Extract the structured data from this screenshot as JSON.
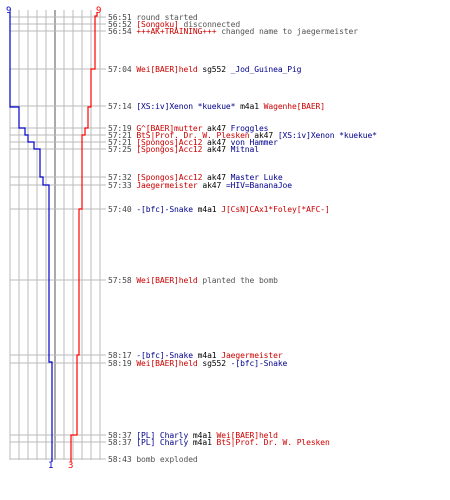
{
  "colors": {
    "blue": "#0000cc",
    "red": "#ff0000",
    "grid": "#bbbbbb",
    "dark": "#555555"
  },
  "labels": {
    "top_left": "9",
    "top_right": "9",
    "bottom_blue": "1",
    "bottom_red": "3"
  },
  "events": [
    {
      "time": "56:51",
      "parts": [
        {
          "text": "round started",
          "c": "gray"
        }
      ]
    },
    {
      "time": "56:52",
      "parts": [
        {
          "text": "[Songoku]",
          "c": "red"
        },
        {
          "text": " disconnected",
          "c": "gray"
        }
      ]
    },
    {
      "time": "56:54",
      "parts": [
        {
          "text": "+++AK+TRAINING+++",
          "c": "red"
        },
        {
          "text": " changed name to jaegermeister",
          "c": "gray"
        }
      ]
    },
    {
      "time": "57:04",
      "parts": [
        {
          "text": "Wei[BAER]held",
          "c": "red"
        },
        {
          "text": " sg552 ",
          "c": "black"
        },
        {
          "text": "_Jod_Guinea_Pig",
          "c": "blue"
        }
      ]
    },
    {
      "time": "57:14",
      "parts": [
        {
          "text": "[XS:iv]Xenon *kuekue*",
          "c": "blue"
        },
        {
          "text": " m4a1 ",
          "c": "black"
        },
        {
          "text": "Wagenhe[BAER]",
          "c": "red"
        }
      ]
    },
    {
      "time": "57:19",
      "parts": [
        {
          "text": "G^[BAER]mutter",
          "c": "red"
        },
        {
          "text": " ak47 ",
          "c": "black"
        },
        {
          "text": "Froggles",
          "c": "blue"
        }
      ]
    },
    {
      "time": "57:21",
      "parts": [
        {
          "text": "BtS|Prof. Dr. W. Plesken",
          "c": "red"
        },
        {
          "text": " ak47 ",
          "c": "black"
        },
        {
          "text": "[XS:iv]Xenon *kuekue*",
          "c": "blue"
        }
      ]
    },
    {
      "time": "57:21",
      "parts": [
        {
          "text": "[Spongos]Acc12",
          "c": "red"
        },
        {
          "text": " ak47 ",
          "c": "black"
        },
        {
          "text": "von Hammer",
          "c": "blue"
        }
      ]
    },
    {
      "time": "57:25",
      "parts": [
        {
          "text": "[Spongos]Acc12",
          "c": "red"
        },
        {
          "text": " ak47 ",
          "c": "black"
        },
        {
          "text": "Mitnal",
          "c": "blue"
        }
      ]
    },
    {
      "time": "57:32",
      "parts": [
        {
          "text": "[Spongos]Acc12",
          "c": "red"
        },
        {
          "text": " ak47 ",
          "c": "black"
        },
        {
          "text": "Master Luke",
          "c": "blue"
        }
      ]
    },
    {
      "time": "57:33",
      "parts": [
        {
          "text": "Jaegermeister",
          "c": "red"
        },
        {
          "text": " ak47 ",
          "c": "black"
        },
        {
          "text": "=HIV=BananaJoe",
          "c": "blue"
        }
      ]
    },
    {
      "time": "57:40",
      "parts": [
        {
          "text": "-[bfc]-Snake",
          "c": "blue"
        },
        {
          "text": " m4a1 ",
          "c": "black"
        },
        {
          "text": "J[CsN]CAx1*Foley[*AFC-]",
          "c": "red"
        }
      ]
    },
    {
      "time": "57:58",
      "parts": [
        {
          "text": "Wei[BAER]held",
          "c": "red"
        },
        {
          "text": " planted the bomb",
          "c": "gray"
        }
      ]
    },
    {
      "time": "58:17",
      "parts": [
        {
          "text": "-[bfc]-Snake",
          "c": "blue"
        },
        {
          "text": " m4a1 ",
          "c": "black"
        },
        {
          "text": "Jaegermeister",
          "c": "red"
        }
      ]
    },
    {
      "time": "58:19",
      "parts": [
        {
          "text": "Wei[BAER]held",
          "c": "red"
        },
        {
          "text": " sg552 ",
          "c": "black"
        },
        {
          "text": "-[bfc]-Snake",
          "c": "blue"
        }
      ]
    },
    {
      "time": "58:37",
      "parts": [
        {
          "text": "[PL] Charly",
          "c": "blue"
        },
        {
          "text": " m4a1 ",
          "c": "black"
        },
        {
          "text": "Wei[BAER]held",
          "c": "red"
        }
      ]
    },
    {
      "time": "58:37",
      "parts": [
        {
          "text": "[PL] Charly",
          "c": "blue"
        },
        {
          "text": " m4a1 ",
          "c": "black"
        },
        {
          "text": "BtS|Prof. Dr. W. Plesken",
          "c": "red"
        }
      ]
    },
    {
      "time": "58:43",
      "parts": [
        {
          "text": "bomb exploded",
          "c": "gray"
        }
      ]
    }
  ]
}
